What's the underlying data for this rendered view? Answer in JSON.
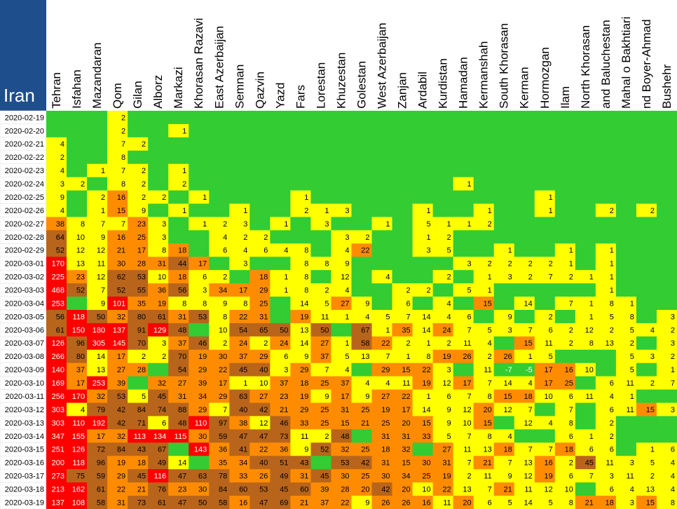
{
  "chart_data": {
    "type": "heatmap",
    "title": "Iran",
    "columns": [
      "Tehran",
      "Isfahan",
      "Mazandaran",
      "Qom",
      "Gilan",
      "Alborz",
      "Markazi",
      "Khorasan Razavi",
      "East Azerbaijan",
      "Semnan",
      "Qazvin",
      "Yazd",
      "Fars",
      "Lorestan",
      "Khuzestan",
      "Golestan",
      "West Azerbaijan",
      "Zanjan",
      "Ardabil",
      "Kurdistan",
      "Hamadan",
      "Kermanshah",
      "South Khorasan",
      "Kerman",
      "Hormozgan",
      "Ilam",
      "North Khorasan",
      "and Baluchestan",
      "Mahal o Bakhtiari",
      "nd Boyer-Ahmad",
      "Bushehr"
    ],
    "rows": [
      "2020-02-19",
      "2020-02-20",
      "2020-02-21",
      "2020-02-22",
      "2020-02-23",
      "2020-02-24",
      "2020-02-25",
      "2020-02-26",
      "2020-02-27",
      "2020-02-28",
      "2020-02-29",
      "2020-03-01",
      "2020-03-02",
      "2020-03-03",
      "2020-03-04",
      "2020-03-05",
      "2020-03-06",
      "2020-03-07",
      "2020-03-08",
      "2020-03-09",
      "2020-03-10",
      "2020-03-11",
      "2020-03-12",
      "2020-03-13",
      "2020-03-14",
      "2020-03-15",
      "2020-03-16",
      "2020-03-17",
      "2020-03-18",
      "2020-03-19"
    ],
    "colors": [
      "#33cc33",
      "#ffff00",
      "#ff8c00",
      "#b8651b",
      "#ff0000"
    ],
    "title_background": "#1f4e8c",
    "values": [
      [
        null,
        null,
        null,
        2,
        null,
        null,
        null,
        null,
        null,
        null,
        null,
        null,
        null,
        null,
        null,
        null,
        null,
        null,
        null,
        null,
        null,
        null,
        null,
        null,
        null,
        null,
        null,
        null,
        null,
        null,
        null
      ],
      [
        null,
        null,
        null,
        2,
        null,
        null,
        1,
        null,
        null,
        null,
        null,
        null,
        null,
        null,
        null,
        null,
        null,
        null,
        null,
        null,
        null,
        null,
        null,
        null,
        null,
        null,
        null,
        null,
        null,
        null,
        null
      ],
      [
        4,
        null,
        null,
        7,
        2,
        null,
        null,
        null,
        null,
        null,
        null,
        null,
        null,
        null,
        null,
        null,
        null,
        null,
        null,
        null,
        null,
        null,
        null,
        null,
        null,
        null,
        null,
        null,
        null,
        null,
        null
      ],
      [
        2,
        null,
        null,
        8,
        null,
        null,
        null,
        null,
        null,
        null,
        null,
        null,
        null,
        null,
        null,
        null,
        null,
        null,
        null,
        null,
        null,
        null,
        null,
        null,
        null,
        null,
        null,
        null,
        null,
        null,
        null
      ],
      [
        4,
        null,
        1,
        7,
        2,
        null,
        1,
        null,
        null,
        null,
        null,
        null,
        null,
        null,
        null,
        null,
        null,
        null,
        null,
        null,
        null,
        null,
        null,
        null,
        null,
        null,
        null,
        null,
        null,
        null,
        null
      ],
      [
        3,
        2,
        null,
        8,
        2,
        null,
        2,
        null,
        null,
        null,
        null,
        null,
        null,
        null,
        null,
        null,
        null,
        null,
        null,
        null,
        1,
        null,
        null,
        null,
        null,
        null,
        null,
        null,
        null,
        null,
        null
      ],
      [
        9,
        null,
        2,
        16,
        2,
        2,
        null,
        1,
        null,
        null,
        null,
        null,
        1,
        null,
        null,
        null,
        null,
        null,
        null,
        null,
        null,
        null,
        null,
        null,
        1,
        null,
        null,
        null,
        null,
        null,
        null
      ],
      [
        4,
        null,
        1,
        15,
        9,
        null,
        1,
        null,
        null,
        1,
        null,
        null,
        2,
        1,
        3,
        null,
        null,
        null,
        1,
        null,
        null,
        1,
        null,
        null,
        1,
        null,
        null,
        2,
        null,
        2,
        null
      ],
      [
        38,
        8,
        7,
        7,
        23,
        3,
        null,
        1,
        2,
        3,
        null,
        1,
        null,
        3,
        null,
        null,
        1,
        null,
        5,
        1,
        1,
        2,
        null,
        null,
        null,
        null,
        null,
        null,
        null,
        null,
        null
      ],
      [
        64,
        10,
        9,
        16,
        25,
        3,
        null,
        null,
        4,
        2,
        2,
        null,
        null,
        null,
        3,
        2,
        null,
        null,
        1,
        2,
        null,
        null,
        null,
        null,
        null,
        null,
        null,
        null,
        null,
        null,
        null
      ],
      [
        52,
        12,
        12,
        21,
        17,
        8,
        18,
        null,
        6,
        4,
        6,
        4,
        8,
        null,
        4,
        22,
        null,
        null,
        3,
        5,
        null,
        null,
        1,
        null,
        null,
        1,
        null,
        1,
        null,
        null,
        null
      ],
      [
        170,
        13,
        11,
        30,
        28,
        31,
        44,
        17,
        null,
        3,
        null,
        null,
        8,
        8,
        9,
        null,
        null,
        null,
        null,
        null,
        3,
        2,
        2,
        2,
        2,
        1,
        null,
        1,
        null,
        null,
        null
      ],
      [
        225,
        23,
        12,
        62,
        53,
        10,
        18,
        6,
        2,
        null,
        18,
        1,
        8,
        null,
        12,
        null,
        4,
        null,
        null,
        2,
        null,
        1,
        3,
        2,
        7,
        2,
        1,
        1,
        null,
        null,
        null
      ],
      [
        468,
        52,
        7,
        52,
        55,
        36,
        56,
        3,
        34,
        17,
        29,
        1,
        8,
        2,
        4,
        null,
        null,
        2,
        2,
        null,
        5,
        1,
        null,
        null,
        null,
        null,
        null,
        1,
        null,
        null,
        null
      ],
      [
        253,
        null,
        9,
        101,
        35,
        19,
        8,
        8,
        9,
        8,
        25,
        null,
        14,
        5,
        27,
        9,
        null,
        6,
        null,
        4,
        null,
        15,
        null,
        14,
        null,
        7,
        1,
        8,
        1,
        null,
        null
      ],
      [
        56,
        118,
        50,
        32,
        80,
        61,
        31,
        53,
        8,
        22,
        31,
        null,
        19,
        11,
        1,
        4,
        5,
        7,
        14,
        4,
        6,
        null,
        9,
        null,
        2,
        null,
        1,
        5,
        8,
        null,
        3
      ],
      [
        61,
        150,
        180,
        137,
        91,
        129,
        48,
        null,
        10,
        54,
        65,
        50,
        13,
        50,
        null,
        67,
        1,
        35,
        14,
        24,
        7,
        5,
        3,
        7,
        6,
        2,
        12,
        2,
        5,
        4,
        2
      ],
      [
        126,
        96,
        305,
        145,
        70,
        3,
        37,
        46,
        2,
        24,
        2,
        24,
        14,
        27,
        1,
        58,
        22,
        2,
        1,
        2,
        11,
        4,
        null,
        15,
        11,
        2,
        8,
        13,
        2,
        null,
        3
      ],
      [
        266,
        80,
        14,
        17,
        2,
        2,
        70,
        19,
        30,
        37,
        29,
        6,
        9,
        37,
        5,
        13,
        7,
        1,
        8,
        19,
        26,
        2,
        26,
        1,
        5,
        null,
        null,
        null,
        5,
        3,
        2
      ],
      [
        140,
        37,
        13,
        27,
        28,
        null,
        54,
        29,
        22,
        45,
        40,
        3,
        29,
        7,
        4,
        null,
        29,
        15,
        22,
        3,
        null,
        11,
        -7,
        -5,
        17,
        16,
        10,
        null,
        5,
        null,
        1
      ],
      [
        169,
        17,
        253,
        39,
        null,
        32,
        27,
        39,
        17,
        1,
        10,
        37,
        18,
        25,
        37,
        4,
        4,
        11,
        19,
        12,
        17,
        7,
        14,
        4,
        17,
        25,
        null,
        6,
        11,
        2,
        7
      ],
      [
        256,
        170,
        32,
        53,
        5,
        45,
        31,
        34,
        29,
        63,
        27,
        23,
        19,
        9,
        17,
        9,
        27,
        22,
        1,
        6,
        7,
        8,
        15,
        18,
        10,
        6,
        11,
        4,
        1,
        null,
        null
      ],
      [
        303,
        4,
        79,
        42,
        84,
        74,
        88,
        29,
        7,
        40,
        42,
        21,
        29,
        25,
        31,
        25,
        19,
        17,
        14,
        9,
        12,
        20,
        12,
        7,
        null,
        7,
        null,
        6,
        11,
        15,
        3
      ],
      [
        303,
        110,
        192,
        42,
        71,
        6,
        48,
        110,
        97,
        38,
        12,
        46,
        33,
        25,
        15,
        21,
        25,
        20,
        15,
        9,
        10,
        15,
        null,
        12,
        4,
        8,
        null,
        2,
        null,
        null,
        null
      ],
      [
        347,
        155,
        17,
        32,
        113,
        134,
        115,
        30,
        59,
        47,
        47,
        73,
        11,
        2,
        48,
        null,
        31,
        31,
        33,
        5,
        7,
        8,
        4,
        null,
        null,
        6,
        1,
        2,
        null,
        null,
        null
      ],
      [
        251,
        126,
        72,
        84,
        43,
        67,
        null,
        143,
        36,
        41,
        22,
        36,
        9,
        52,
        32,
        25,
        18,
        32,
        null,
        27,
        11,
        13,
        18,
        7,
        7,
        18,
        6,
        6,
        null,
        1,
        6
      ],
      [
        200,
        118,
        96,
        19,
        18,
        49,
        14,
        null,
        35,
        34,
        40,
        51,
        43,
        null,
        53,
        42,
        31,
        15,
        30,
        31,
        7,
        21,
        7,
        13,
        16,
        2,
        45,
        11,
        3,
        5,
        4
      ],
      [
        273,
        75,
        59,
        29,
        45,
        116,
        47,
        63,
        78,
        33,
        26,
        49,
        31,
        45,
        30,
        25,
        30,
        34,
        25,
        19,
        2,
        11,
        9,
        12,
        19,
        6,
        7,
        3,
        11,
        2,
        4
      ],
      [
        213,
        162,
        61,
        22,
        21,
        76,
        23,
        30,
        84,
        60,
        53,
        45,
        60,
        39,
        28,
        20,
        42,
        20,
        10,
        22,
        13,
        7,
        21,
        11,
        12,
        10,
        null,
        6,
        4,
        13,
        4
      ],
      [
        137,
        108,
        58,
        31,
        73,
        61,
        47,
        50,
        58,
        16,
        47,
        69,
        21,
        37,
        22,
        9,
        26,
        26,
        16,
        11,
        20,
        6,
        5,
        14,
        5,
        8,
        21,
        18,
        3,
        15,
        8
      ]
    ]
  }
}
